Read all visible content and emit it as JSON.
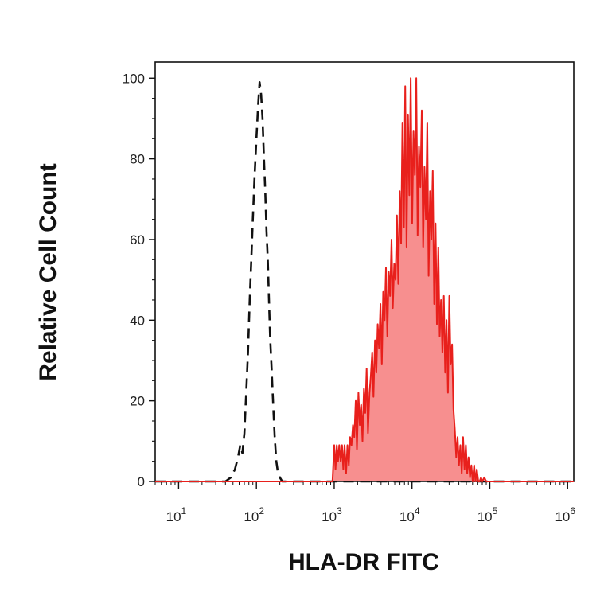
{
  "chart_data": {
    "type": "area",
    "title": "",
    "xlabel": "HLA-DR FITC",
    "ylabel": "Relative Cell Count",
    "xscale": "log",
    "xlim": [
      5,
      1200000
    ],
    "ylim": [
      0,
      104
    ],
    "grid": false,
    "x_ticks": [
      {
        "value": 10,
        "base": "10",
        "exp": "1"
      },
      {
        "value": 100,
        "base": "10",
        "exp": "2"
      },
      {
        "value": 1000,
        "base": "10",
        "exp": "3"
      },
      {
        "value": 10000,
        "base": "10",
        "exp": "4"
      },
      {
        "value": 100000,
        "base": "10",
        "exp": "5"
      },
      {
        "value": 1000000,
        "base": "10",
        "exp": "6"
      }
    ],
    "y_ticks": [
      {
        "value": 0,
        "label": "0"
      },
      {
        "value": 20,
        "label": "20"
      },
      {
        "value": 40,
        "label": "40"
      },
      {
        "value": 60,
        "label": "60"
      },
      {
        "value": 80,
        "label": "80"
      },
      {
        "value": 100,
        "label": "100"
      }
    ],
    "series": [
      {
        "style": "dashed-line",
        "color": "#111111",
        "x": [
          5,
          40,
          47,
          53,
          58,
          62,
          66,
          70,
          74,
          78,
          82,
          86,
          90,
          95,
          100,
          105,
          110,
          115,
          120,
          125,
          130,
          135,
          140,
          145,
          150,
          157,
          165,
          172,
          180,
          190,
          200,
          215,
          240,
          1200000
        ],
        "y": [
          0,
          0,
          1,
          3,
          6,
          9,
          7,
          12,
          22,
          32,
          45,
          55,
          65,
          76,
          85,
          93,
          99,
          96,
          90,
          80,
          72,
          62,
          55,
          45,
          36,
          28,
          18,
          11,
          5,
          2,
          1,
          0,
          0,
          0
        ]
      },
      {
        "style": "filled-area",
        "color": "#e8201c",
        "fill": "#f78f8f",
        "x": [
          5,
          900,
          950,
          1000,
          1040,
          1080,
          1120,
          1160,
          1210,
          1260,
          1310,
          1360,
          1420,
          1480,
          1540,
          1600,
          1670,
          1740,
          1810,
          1890,
          1960,
          2050,
          2130,
          2220,
          2310,
          2410,
          2510,
          2610,
          2720,
          2840,
          2950,
          3080,
          3200,
          3340,
          3480,
          3620,
          3770,
          3930,
          4090,
          4260,
          4440,
          4630,
          4820,
          5020,
          5230,
          5450,
          5670,
          5910,
          6150,
          6410,
          6670,
          6950,
          7240,
          7540,
          7860,
          8180,
          8520,
          8880,
          9250,
          9630,
          10030,
          10450,
          10890,
          11340,
          11810,
          12300,
          12810,
          13340,
          13900,
          14480,
          15080,
          15710,
          16360,
          17040,
          17750,
          18490,
          19260,
          20060,
          20900,
          21770,
          22670,
          23610,
          24600,
          25620,
          26690,
          27800,
          28960,
          30160,
          31420,
          32730,
          34090,
          35510,
          36990,
          38530,
          40130,
          41800,
          43540,
          45350,
          47240,
          49210,
          51250,
          53390,
          55610,
          57920,
          60330,
          62850,
          65460,
          68190,
          71030,
          74000,
          77000,
          80000,
          85000,
          90000,
          95000,
          100000,
          110000,
          130000,
          160000,
          1200000
        ],
        "y": [
          0,
          0,
          0,
          9,
          3,
          9,
          5,
          9,
          5,
          9,
          3,
          9,
          2,
          9,
          4,
          11,
          9,
          14,
          11,
          20,
          8,
          22,
          14,
          19,
          10,
          23,
          17,
          28,
          12,
          22,
          26,
          32,
          21,
          35,
          27,
          39,
          33,
          44,
          29,
          47,
          40,
          53,
          36,
          52,
          46,
          60,
          43,
          54,
          50,
          66,
          49,
          72,
          59,
          89,
          63,
          98,
          58,
          91,
          71,
          100,
          64,
          87,
          76,
          100,
          61,
          83,
          73,
          92,
          58,
          78,
          65,
          89,
          51,
          72,
          60,
          77,
          44,
          64,
          39,
          58,
          36,
          45,
          32,
          46,
          27,
          40,
          22,
          46,
          29,
          34,
          18,
          13,
          6,
          11,
          4,
          9,
          2,
          11,
          3,
          9,
          2,
          6,
          1,
          4,
          0,
          4,
          0,
          3,
          0,
          0,
          1,
          0,
          1,
          0,
          0,
          0,
          0,
          0,
          0,
          0
        ]
      }
    ]
  }
}
